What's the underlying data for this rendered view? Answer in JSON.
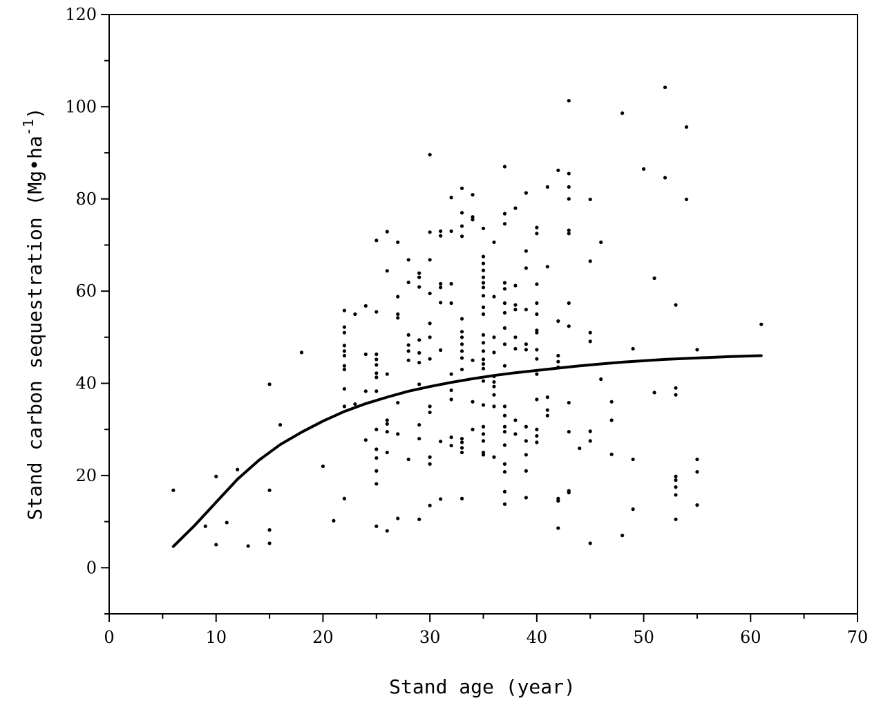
{
  "chart_data": {
    "type": "scatter",
    "xlabel": "Stand age (year)",
    "ylabel": "Stand carbon sequestration (Mg•ha",
    "ylabel_sup": "-1",
    "ylabel_close": ")",
    "xlim": [
      0,
      70
    ],
    "ylim": [
      -10,
      120
    ],
    "xticks": [
      0,
      10,
      20,
      30,
      40,
      50,
      60,
      70
    ],
    "yticks": [
      0,
      20,
      40,
      60,
      80,
      100,
      120
    ],
    "grid": false,
    "legend": "none",
    "colors": {
      "points": "#000000",
      "curve": "#000000"
    },
    "points": [
      [
        6,
        16.8
      ],
      [
        9,
        9
      ],
      [
        10,
        19.8
      ],
      [
        10,
        5
      ],
      [
        11,
        9.8
      ],
      [
        12,
        21.3
      ],
      [
        13,
        4.7
      ],
      [
        15,
        39.8
      ],
      [
        15,
        16.8
      ],
      [
        15,
        8.2
      ],
      [
        15,
        5.3
      ],
      [
        16,
        31
      ],
      [
        18,
        46.7
      ],
      [
        20,
        22
      ],
      [
        21,
        10.2
      ],
      [
        22,
        55.8
      ],
      [
        22,
        52.2
      ],
      [
        22,
        51
      ],
      [
        22,
        48.2
      ],
      [
        22,
        47
      ],
      [
        22,
        46
      ],
      [
        22,
        43.8
      ],
      [
        22,
        43
      ],
      [
        22,
        38.8
      ],
      [
        22,
        35
      ],
      [
        22,
        15
      ],
      [
        23,
        55
      ],
      [
        23,
        35.5
      ],
      [
        24,
        56.8
      ],
      [
        24,
        46.3
      ],
      [
        24,
        38.3
      ],
      [
        24,
        27.7
      ],
      [
        25,
        71
      ],
      [
        25,
        55.5
      ],
      [
        25,
        46.3
      ],
      [
        25,
        45.2
      ],
      [
        25,
        44
      ],
      [
        25,
        42.2
      ],
      [
        25,
        41.3
      ],
      [
        25,
        38.3
      ],
      [
        25,
        30
      ],
      [
        25,
        25.7
      ],
      [
        25,
        23.8
      ],
      [
        25,
        21
      ],
      [
        25,
        18.2
      ],
      [
        25,
        9
      ],
      [
        26,
        72.9
      ],
      [
        26,
        64.4
      ],
      [
        26,
        42
      ],
      [
        26,
        32
      ],
      [
        26,
        31.2
      ],
      [
        26,
        29.5
      ],
      [
        26,
        25
      ],
      [
        26,
        8
      ],
      [
        27,
        70.6
      ],
      [
        27,
        58.8
      ],
      [
        27,
        55
      ],
      [
        27,
        54.2
      ],
      [
        27,
        35.8
      ],
      [
        27,
        29
      ],
      [
        27,
        10.7
      ],
      [
        28,
        66.8
      ],
      [
        28,
        61.9
      ],
      [
        28,
        50.5
      ],
      [
        28,
        48.3
      ],
      [
        28,
        47
      ],
      [
        28,
        45
      ],
      [
        28,
        23.5
      ],
      [
        29,
        63.9
      ],
      [
        29,
        63
      ],
      [
        29,
        60.9
      ],
      [
        29,
        49.4
      ],
      [
        29,
        46.6
      ],
      [
        29,
        44.5
      ],
      [
        29,
        39.8
      ],
      [
        29,
        31
      ],
      [
        29,
        28
      ],
      [
        29,
        10.5
      ],
      [
        30,
        89.6
      ],
      [
        30,
        72.8
      ],
      [
        30,
        66.8
      ],
      [
        30,
        59.5
      ],
      [
        30,
        53
      ],
      [
        30,
        50
      ],
      [
        30,
        45.3
      ],
      [
        30,
        35
      ],
      [
        30,
        33.7
      ],
      [
        30,
        24
      ],
      [
        30,
        22.5
      ],
      [
        30,
        13.5
      ],
      [
        31,
        73
      ],
      [
        31,
        72
      ],
      [
        31,
        61.6
      ],
      [
        31,
        60.8
      ],
      [
        31,
        57.5
      ],
      [
        31,
        47.2
      ],
      [
        31,
        27.4
      ],
      [
        31,
        14.9
      ],
      [
        32,
        80.3
      ],
      [
        32,
        73
      ],
      [
        32,
        61.6
      ],
      [
        32,
        57.4
      ],
      [
        32,
        42
      ],
      [
        32,
        38.5
      ],
      [
        32,
        36.5
      ],
      [
        32,
        28.3
      ],
      [
        32,
        26.5
      ],
      [
        33,
        82.3
      ],
      [
        33,
        77
      ],
      [
        33,
        74.1
      ],
      [
        33,
        71.9
      ],
      [
        33,
        54
      ],
      [
        33,
        51.2
      ],
      [
        33,
        50
      ],
      [
        33,
        48.5
      ],
      [
        33,
        47
      ],
      [
        33,
        45.5
      ],
      [
        33,
        43
      ],
      [
        33,
        28
      ],
      [
        33,
        27.2
      ],
      [
        33,
        26
      ],
      [
        33,
        25
      ],
      [
        33,
        15
      ],
      [
        34,
        80.9
      ],
      [
        34,
        76.1
      ],
      [
        34,
        75.5
      ],
      [
        34,
        45
      ],
      [
        34,
        36
      ],
      [
        34,
        30
      ],
      [
        35,
        73.6
      ],
      [
        35,
        67.5
      ],
      [
        35,
        66
      ],
      [
        35,
        64.5
      ],
      [
        35,
        63
      ],
      [
        35,
        61.8
      ],
      [
        35,
        60.8
      ],
      [
        35,
        59
      ],
      [
        35,
        56.5
      ],
      [
        35,
        55
      ],
      [
        35,
        50.5
      ],
      [
        35,
        48.8
      ],
      [
        35,
        47
      ],
      [
        35,
        45.2
      ],
      [
        35,
        44.2
      ],
      [
        35,
        43.2
      ],
      [
        35,
        40.5
      ],
      [
        35,
        35.3
      ],
      [
        35,
        30.6
      ],
      [
        35,
        29
      ],
      [
        35,
        27.5
      ],
      [
        35,
        25
      ],
      [
        35,
        24.5
      ],
      [
        36,
        70.6
      ],
      [
        36,
        58.8
      ],
      [
        36,
        50
      ],
      [
        36,
        46.7
      ],
      [
        36,
        41.5
      ],
      [
        36,
        40.3
      ],
      [
        36,
        39.3
      ],
      [
        36,
        37.5
      ],
      [
        36,
        35
      ],
      [
        36,
        24
      ],
      [
        37,
        87
      ],
      [
        37,
        76.8
      ],
      [
        37,
        74.6
      ],
      [
        37,
        61.8
      ],
      [
        37,
        60.5
      ],
      [
        37,
        57.4
      ],
      [
        37,
        55.3
      ],
      [
        37,
        52
      ],
      [
        37,
        48.5
      ],
      [
        37,
        43.8
      ],
      [
        37,
        35
      ],
      [
        37,
        33
      ],
      [
        37,
        30.6
      ],
      [
        37,
        29.5
      ],
      [
        37,
        26.6
      ],
      [
        37,
        22.5
      ],
      [
        37,
        20.8
      ],
      [
        37,
        16.5
      ],
      [
        37,
        13.8
      ],
      [
        38,
        78
      ],
      [
        38,
        61.2
      ],
      [
        38,
        57
      ],
      [
        38,
        56
      ],
      [
        38,
        50
      ],
      [
        38,
        47.5
      ],
      [
        38,
        32
      ],
      [
        38,
        29
      ],
      [
        39,
        81.3
      ],
      [
        39,
        68.7
      ],
      [
        39,
        65
      ],
      [
        39,
        56
      ],
      [
        39,
        48.5
      ],
      [
        39,
        47.3
      ],
      [
        39,
        30.6
      ],
      [
        39,
        27.5
      ],
      [
        39,
        24.5
      ],
      [
        39,
        21
      ],
      [
        39,
        15.2
      ],
      [
        40,
        73.8
      ],
      [
        40,
        72.5
      ],
      [
        40,
        61.5
      ],
      [
        40,
        57.4
      ],
      [
        40,
        55
      ],
      [
        40,
        51.5
      ],
      [
        40,
        51
      ],
      [
        40,
        47.3
      ],
      [
        40,
        45.3
      ],
      [
        40,
        42
      ],
      [
        40,
        36.5
      ],
      [
        40,
        30
      ],
      [
        40,
        28.6
      ],
      [
        40,
        27.2
      ],
      [
        41,
        82.6
      ],
      [
        41,
        65.3
      ],
      [
        41,
        37
      ],
      [
        41,
        34.2
      ],
      [
        41,
        33
      ],
      [
        42,
        86.2
      ],
      [
        42,
        53.5
      ],
      [
        42,
        46
      ],
      [
        42,
        44.7
      ],
      [
        42,
        43.5
      ],
      [
        42,
        15
      ],
      [
        42,
        14.5
      ],
      [
        42,
        8.6
      ],
      [
        43,
        101.3
      ],
      [
        43,
        85.5
      ],
      [
        43,
        82.6
      ],
      [
        43,
        80
      ],
      [
        43,
        73.2
      ],
      [
        43,
        72.5
      ],
      [
        43,
        57.4
      ],
      [
        43,
        52.4
      ],
      [
        43,
        35.8
      ],
      [
        43,
        29.5
      ],
      [
        43,
        16.7
      ],
      [
        43,
        16.3
      ],
      [
        44,
        25.9
      ],
      [
        45,
        79.9
      ],
      [
        45,
        66.5
      ],
      [
        45,
        51
      ],
      [
        45,
        49.1
      ],
      [
        45,
        29.6
      ],
      [
        45,
        27.5
      ],
      [
        45,
        5.3
      ],
      [
        46,
        70.6
      ],
      [
        46,
        40.9
      ],
      [
        47,
        36
      ],
      [
        47,
        32
      ],
      [
        47,
        24.6
      ],
      [
        48,
        98.6
      ],
      [
        48,
        7
      ],
      [
        49,
        47.5
      ],
      [
        49,
        23.5
      ],
      [
        49,
        12.7
      ],
      [
        50,
        86.5
      ],
      [
        51,
        62.8
      ],
      [
        51,
        38
      ],
      [
        52,
        104.2
      ],
      [
        52,
        84.6
      ],
      [
        53,
        57
      ],
      [
        53,
        39
      ],
      [
        53,
        37.5
      ],
      [
        53,
        19.8
      ],
      [
        53,
        19
      ],
      [
        53,
        17.5
      ],
      [
        53,
        15.8
      ],
      [
        53,
        10.5
      ],
      [
        54,
        95.6
      ],
      [
        54,
        79.9
      ],
      [
        55,
        47.3
      ],
      [
        55,
        23.5
      ],
      [
        55,
        20.8
      ],
      [
        55,
        13.6
      ],
      [
        61,
        52.8
      ]
    ],
    "curve": [
      [
        6,
        4.6
      ],
      [
        8,
        9.2
      ],
      [
        10,
        14.2
      ],
      [
        12,
        19.2
      ],
      [
        14,
        23.3
      ],
      [
        16,
        26.7
      ],
      [
        18,
        29.4
      ],
      [
        20,
        31.8
      ],
      [
        22,
        33.9
      ],
      [
        24,
        35.6
      ],
      [
        26,
        37
      ],
      [
        28,
        38.3
      ],
      [
        30,
        39.3
      ],
      [
        32,
        40.2
      ],
      [
        34,
        41
      ],
      [
        36,
        41.7
      ],
      [
        38,
        42.3
      ],
      [
        40,
        42.8
      ],
      [
        42,
        43.3
      ],
      [
        44,
        43.8
      ],
      [
        46,
        44.2
      ],
      [
        48,
        44.6
      ],
      [
        50,
        44.9
      ],
      [
        52,
        45.2
      ],
      [
        54,
        45.4
      ],
      [
        56,
        45.6
      ],
      [
        58,
        45.8
      ],
      [
        61,
        46
      ]
    ]
  }
}
